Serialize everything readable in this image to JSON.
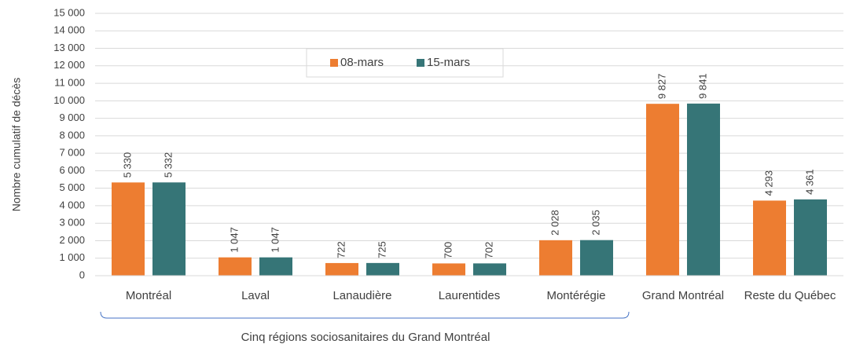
{
  "chart_data": {
    "type": "bar",
    "y_label": "Nombre cumulatif de décès",
    "categories": [
      "Montréal",
      "Laval",
      "Lanaudière",
      "Laurentides",
      "Montérégie",
      "Grand Montréal",
      "Reste du Québec"
    ],
    "series": [
      {
        "name": "08-mars",
        "color": "#ED7D31",
        "values": [
          5330,
          1047,
          722,
          700,
          2028,
          9827,
          4293
        ],
        "value_labels": [
          "5 330",
          "1 047",
          "722",
          "700",
          "2 028",
          "9 827",
          "4 293"
        ]
      },
      {
        "name": "15-mars",
        "color": "#367577",
        "values": [
          5332,
          1047,
          725,
          702,
          2035,
          9841,
          4361
        ],
        "value_labels": [
          "5 332",
          "1 047",
          "725",
          "702",
          "2 035",
          "9 841",
          "4 361"
        ]
      }
    ],
    "ylim": [
      0,
      15000
    ],
    "yticks": [
      0,
      {
        "value": 1000,
        "label": "1 000"
      },
      {
        "value": 2000,
        "label": "2 000"
      },
      {
        "value": 3000,
        "label": "3 000"
      },
      {
        "value": 4000,
        "label": "4 000"
      },
      {
        "value": 5000,
        "label": "5 000"
      },
      {
        "value": 6000,
        "label": "6 000"
      },
      {
        "value": 7000,
        "label": "7 000"
      },
      {
        "value": 8000,
        "label": "8 000"
      },
      {
        "value": 9000,
        "label": "9 000"
      },
      {
        "value": 10000,
        "label": "10 000"
      },
      {
        "value": 11000,
        "label": "11 000"
      },
      {
        "value": 12000,
        "label": "12 000"
      },
      {
        "value": 13000,
        "label": "13 000"
      },
      {
        "value": 14000,
        "label": "14 000"
      },
      {
        "value": 15000,
        "label": "15 000"
      }
    ],
    "grid": true,
    "legend": "top",
    "annotation": "Cinq régions sociosanitaires du Grand Montréal"
  }
}
